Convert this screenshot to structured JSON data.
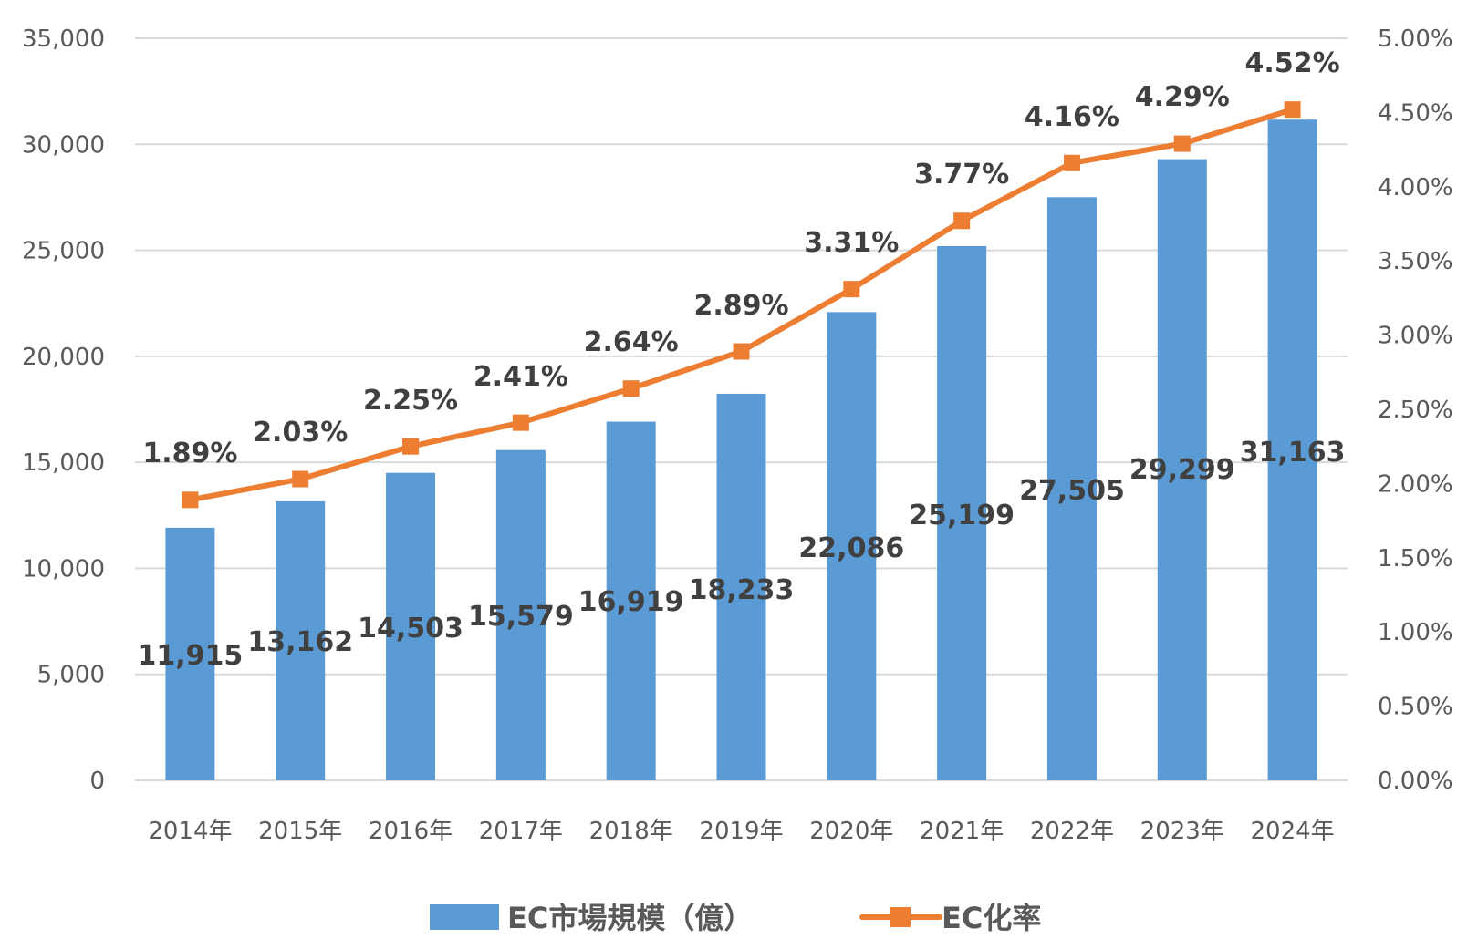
{
  "chart_data": {
    "type": "bar+line",
    "categories": [
      "2014年",
      "2015年",
      "2016年",
      "2017年",
      "2018年",
      "2019年",
      "2020年",
      "2021年",
      "2022年",
      "2023年",
      "2024年"
    ],
    "series": [
      {
        "name": "EC市場規模（億）",
        "type": "bar",
        "axis": "left",
        "color": "#5B9BD5",
        "values": [
          11915,
          13162,
          14503,
          15579,
          16919,
          18233,
          22086,
          25199,
          27505,
          29299,
          31163
        ],
        "labels": [
          "11,915",
          "13,162",
          "14,503",
          "15,579",
          "16,919",
          "18,233",
          "22,086",
          "25,199",
          "27,505",
          "29,299",
          "31,163"
        ]
      },
      {
        "name": "EC化率",
        "type": "line",
        "axis": "right",
        "color": "#ED7D31",
        "marker": "square",
        "values": [
          1.89,
          2.03,
          2.25,
          2.41,
          2.64,
          2.89,
          3.31,
          3.77,
          4.16,
          4.29,
          4.52
        ],
        "labels": [
          "1.89%",
          "2.03%",
          "2.25%",
          "2.41%",
          "2.64%",
          "2.89%",
          "3.31%",
          "3.77%",
          "4.16%",
          "4.29%",
          "4.52%"
        ]
      }
    ],
    "y_left": {
      "range": [
        0,
        35000
      ],
      "ticks": [
        "0",
        "5,000",
        "10,000",
        "15,000",
        "20,000",
        "25,000",
        "30,000",
        "35,000"
      ]
    },
    "y_right": {
      "range": [
        0,
        5
      ],
      "ticks": [
        "0.00%",
        "0.50%",
        "1.00%",
        "1.50%",
        "2.00%",
        "2.50%",
        "3.00%",
        "3.50%",
        "4.00%",
        "4.50%",
        "5.00%"
      ]
    },
    "grid": true,
    "legend": "bottom"
  }
}
